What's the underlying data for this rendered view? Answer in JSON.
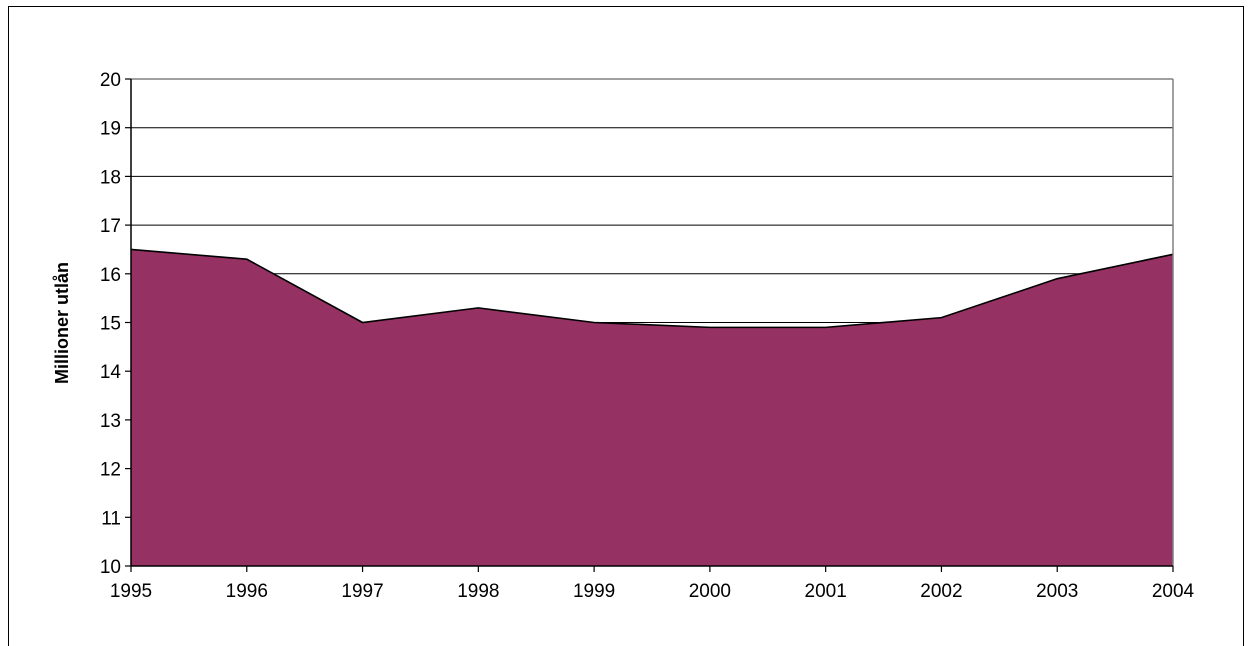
{
  "chart_data": {
    "type": "area",
    "x": [
      "1995",
      "1996",
      "1997",
      "1998",
      "1999",
      "2000",
      "2001",
      "2002",
      "2003",
      "2004"
    ],
    "series": [
      {
        "values": [
          16.5,
          16.3,
          15.0,
          15.3,
          15.0,
          14.9,
          14.9,
          15.1,
          15.9,
          16.4
        ],
        "color": "#953163"
      }
    ],
    "title": "",
    "xlabel": "",
    "ylabel": "Millioner utlån",
    "ylim": [
      10,
      20
    ],
    "yticks": [
      "10",
      "11",
      "12",
      "13",
      "14",
      "15",
      "16",
      "17",
      "18",
      "19",
      "20"
    ],
    "grid": true,
    "legend": "none"
  }
}
